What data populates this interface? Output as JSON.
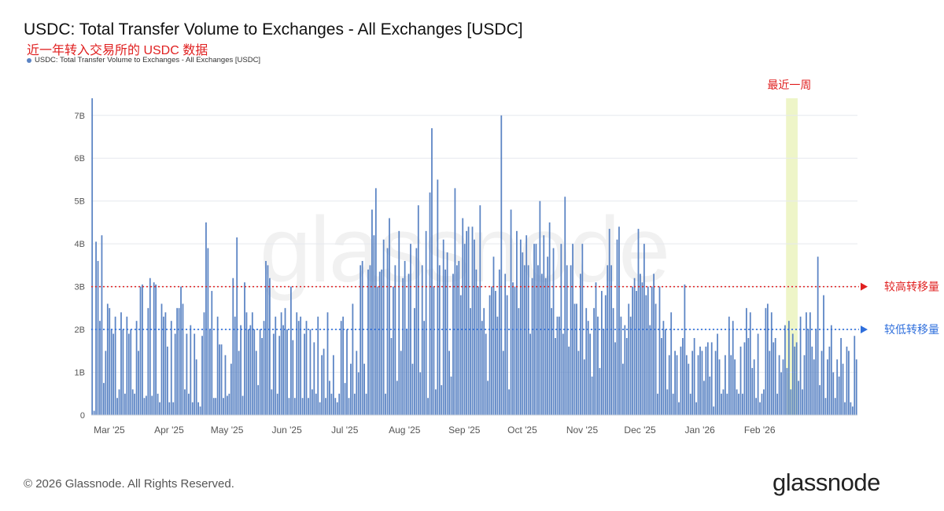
{
  "colors": {
    "bar": "#5b84c4",
    "high_line": "#e02020",
    "low_line": "#2f6fdc",
    "highlight": "#eef5c8",
    "grid": "#e6e9ee",
    "axis_text": "#555555"
  },
  "footer": {
    "copyright": "© 2026 Glassnode. All Rights Reserved.",
    "brand": "glassnode"
  },
  "watermark": "glassnode",
  "chart_data": {
    "type": "bar",
    "title": "USDC: Total Transfer Volume to Exchanges - All Exchanges [USDC]",
    "subtitle": "近一年转入交易所的 USDC 数据",
    "legend": [
      {
        "name": "USDC: Total Transfer Volume to Exchanges - All Exchanges [USDC]"
      }
    ],
    "ylim": [
      0,
      7.4
    ],
    "y_ticks": [
      {
        "value": 0,
        "label": "0"
      },
      {
        "value": 1,
        "label": "1B"
      },
      {
        "value": 2,
        "label": "2B"
      },
      {
        "value": 3,
        "label": "3B"
      },
      {
        "value": 4,
        "label": "4B"
      },
      {
        "value": 5,
        "label": "5B"
      },
      {
        "value": 6,
        "label": "6B"
      },
      {
        "value": 7,
        "label": "7B"
      }
    ],
    "x_ticks": [
      {
        "label": "Mar '25",
        "index": 2
      },
      {
        "label": "Apr '25",
        "index": 33
      },
      {
        "label": "May '25",
        "index": 63
      },
      {
        "label": "Jun '25",
        "index": 94
      },
      {
        "label": "Jul '25",
        "index": 124
      },
      {
        "label": "Aug '25",
        "index": 155
      },
      {
        "label": "Sep '25",
        "index": 186
      },
      {
        "label": "Oct '25",
        "index": 216
      },
      {
        "label": "Nov '25",
        "index": 247
      },
      {
        "label": "Dec '25",
        "index": 277
      },
      {
        "label": "Jan '26",
        "index": 308
      },
      {
        "label": "Feb '26",
        "index": 339
      }
    ],
    "reference_lines": [
      {
        "value": 3.0,
        "label": "较高转移量",
        "color": "#e02020"
      },
      {
        "value": 2.0,
        "label": "较低转移量",
        "color": "#2f6fdc"
      }
    ],
    "highlight": {
      "start_index": 360,
      "end_index": 365,
      "label": "最近一周"
    },
    "series": [
      {
        "name": "USDC: Total Transfer Volume to Exchanges - All Exchanges [USDC]",
        "values": [
          7.4,
          0.1,
          4.05,
          3.6,
          2.2,
          4.2,
          0.75,
          1.5,
          2.6,
          2.5,
          2.0,
          1.9,
          2.3,
          0.4,
          0.6,
          2.4,
          2.0,
          0.5,
          2.3,
          1.9,
          2.0,
          0.6,
          0.5,
          2.2,
          1.5,
          3.0,
          3.05,
          0.4,
          0.45,
          2.5,
          3.2,
          0.45,
          3.1,
          3.05,
          0.5,
          0.3,
          2.6,
          2.3,
          2.4,
          1.6,
          0.3,
          2.2,
          0.3,
          1.9,
          2.5,
          2.5,
          3.0,
          2.6,
          0.6,
          1.9,
          0.5,
          2.1,
          0.3,
          1.9,
          1.3,
          0.3,
          0.2,
          1.85,
          2.4,
          4.5,
          3.9,
          2.0,
          2.9,
          0.4,
          0.4,
          2.3,
          1.65,
          1.65,
          0.4,
          1.4,
          0.45,
          0.5,
          1.2,
          3.2,
          2.3,
          4.15,
          1.5,
          2.1,
          0.45,
          3.1,
          2.4,
          2.0,
          2.1,
          2.4,
          2.0,
          1.5,
          0.7,
          2.0,
          1.8,
          2.2,
          3.6,
          3.5,
          3.2,
          0.6,
          1.9,
          2.3,
          0.5,
          1.85,
          2.4,
          2.1,
          2.5,
          2.0,
          0.4,
          3.0,
          1.75,
          0.4,
          2.4,
          2.2,
          2.3,
          0.4,
          1.9,
          2.2,
          0.4,
          2.0,
          0.6,
          1.7,
          0.5,
          2.3,
          0.3,
          1.4,
          1.55,
          0.4,
          2.4,
          0.8,
          0.5,
          1.4,
          0.4,
          0.3,
          0.5,
          2.2,
          2.3,
          0.75,
          2.0,
          0.4,
          1.2,
          2.6,
          0.5,
          1.5,
          1.0,
          3.5,
          3.6,
          1.2,
          0.5,
          3.4,
          3.5,
          4.8,
          4.2,
          5.3,
          3.0,
          3.35,
          3.4,
          4.1,
          0.5,
          3.9,
          4.6,
          1.8,
          3.0,
          3.5,
          0.8,
          4.3,
          1.5,
          3.2,
          3.6,
          2.0,
          3.3,
          4.0,
          1.2,
          2.5,
          3.9,
          4.9,
          1.0,
          3.5,
          2.2,
          4.3,
          0.4,
          5.2,
          6.7,
          3.0,
          0.6,
          5.5,
          3.5,
          0.7,
          4.1,
          3.4,
          3.8,
          1.5,
          0.9,
          3.3,
          5.3,
          3.5,
          3.6,
          2.8,
          4.6,
          4.0,
          4.3,
          4.4,
          2.5,
          4.4,
          4.1,
          3.4,
          3.0,
          4.9,
          2.2,
          2.5,
          1.9,
          0.8,
          2.8,
          3.0,
          3.7,
          2.9,
          2.3,
          3.4,
          7.0,
          1.5,
          3.3,
          2.8,
          0.6,
          4.8,
          3.1,
          3.0,
          4.3,
          2.5,
          4.1,
          3.8,
          3.5,
          4.2,
          3.5,
          1.9,
          3.2,
          4.0,
          4.0,
          3.5,
          5.0,
          3.3,
          4.2,
          3.2,
          3.7,
          4.5,
          2.5,
          3.9,
          1.8,
          2.3,
          2.3,
          4.0,
          1.9,
          5.1,
          3.5,
          1.6,
          3.5,
          4.0,
          2.6,
          2.6,
          1.5,
          3.3,
          4.0,
          1.3,
          2.5,
          2.2,
          1.9,
          0.9,
          2.5,
          3.1,
          2.3,
          1.1,
          2.9,
          2.0,
          2.8,
          3.5,
          4.35,
          3.5,
          2.5,
          1.7,
          4.1,
          4.4,
          2.3,
          1.2,
          2.1,
          1.8,
          2.6,
          2.3,
          3.0,
          3.2,
          2.9,
          4.35,
          3.3,
          3.1,
          4.0,
          2.8,
          3.0,
          2.1,
          3.0,
          3.3,
          2.6,
          0.5,
          3.0,
          1.8,
          2.2,
          2.0,
          0.6,
          1.4,
          2.4,
          0.5,
          1.5,
          1.4,
          0.3,
          1.6,
          1.8,
          3.05,
          1.4,
          1.2,
          0.5,
          1.5,
          1.8,
          0.3,
          1.4,
          1.6,
          1.5,
          0.8,
          1.6,
          1.7,
          0.9,
          1.7,
          0.2,
          1.5,
          1.9,
          1.3,
          0.5,
          0.6,
          1.4,
          0.5,
          2.3,
          1.4,
          2.2,
          1.3,
          0.6,
          0.5,
          1.6,
          0.5,
          1.7,
          2.5,
          1.8,
          2.4,
          1.1,
          1.3,
          0.4,
          1.9,
          0.3,
          0.5,
          0.6,
          2.5,
          2.6,
          1.5,
          2.4,
          1.7,
          1.8,
          0.5,
          1.4,
          1.0,
          1.3,
          2.1,
          1.1,
          2.2,
          0.6,
          1.9,
          1.6,
          1.7,
          0.8,
          2.3,
          0.6,
          1.4,
          2.4,
          2.0,
          2.4,
          1.6,
          1.3,
          2.0,
          3.7,
          0.7,
          1.5,
          2.8,
          0.4,
          1.3,
          1.6,
          2.1,
          1.0,
          0.4,
          1.3,
          0.9,
          1.8,
          1.2,
          0.3,
          1.6,
          1.5,
          0.3,
          0.2,
          1.85,
          1.3
        ],
        "color": "#5b84c4"
      }
    ]
  }
}
